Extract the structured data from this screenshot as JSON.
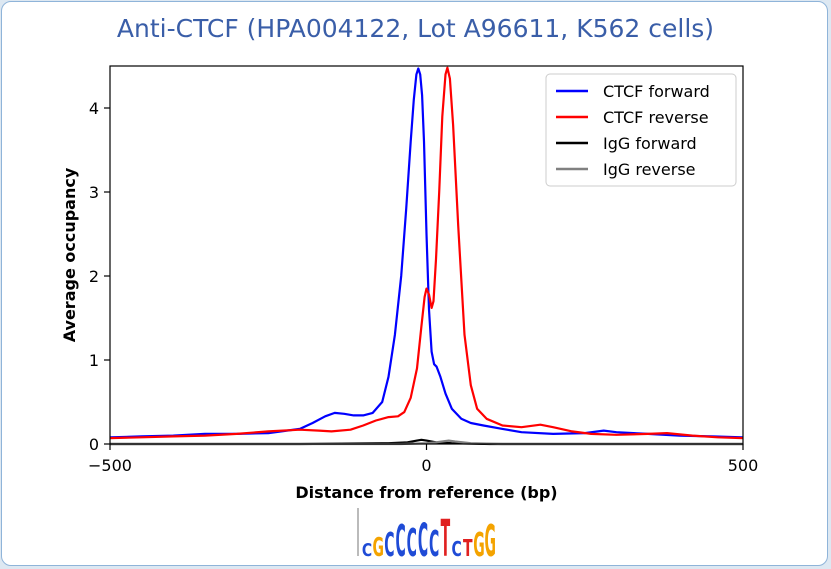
{
  "chart_data": {
    "type": "line",
    "title": "Anti-CTCF (HPA004122, Lot A96611, K562 cells)",
    "xlabel": "Distance from reference (bp)",
    "ylabel": "Average occupancy",
    "xlim": [
      -500,
      500
    ],
    "ylim": [
      0,
      4.5
    ],
    "xticks": [
      -500,
      0,
      500
    ],
    "xtick_labels": [
      "−500",
      "0",
      "500"
    ],
    "yticks": [
      0,
      1,
      2,
      3,
      4
    ],
    "ytick_labels": [
      "0",
      "1",
      "2",
      "3",
      "4"
    ],
    "grid": false,
    "legend_placement": "top-right",
    "series": [
      {
        "name": "CTCF forward",
        "color": "#0000ff",
        "points": [
          [
            -500,
            0.08
          ],
          [
            -450,
            0.09
          ],
          [
            -400,
            0.1
          ],
          [
            -350,
            0.12
          ],
          [
            -300,
            0.12
          ],
          [
            -250,
            0.13
          ],
          [
            -200,
            0.18
          ],
          [
            -180,
            0.25
          ],
          [
            -160,
            0.33
          ],
          [
            -145,
            0.37
          ],
          [
            -130,
            0.36
          ],
          [
            -115,
            0.34
          ],
          [
            -100,
            0.34
          ],
          [
            -85,
            0.37
          ],
          [
            -70,
            0.5
          ],
          [
            -60,
            0.8
          ],
          [
            -50,
            1.3
          ],
          [
            -40,
            2.0
          ],
          [
            -32,
            2.8
          ],
          [
            -25,
            3.6
          ],
          [
            -20,
            4.1
          ],
          [
            -16,
            4.4
          ],
          [
            -13,
            4.47
          ],
          [
            -10,
            4.4
          ],
          [
            -7,
            4.15
          ],
          [
            -4,
            3.6
          ],
          [
            0,
            2.5
          ],
          [
            4,
            1.6
          ],
          [
            8,
            1.1
          ],
          [
            12,
            0.95
          ],
          [
            16,
            0.92
          ],
          [
            22,
            0.8
          ],
          [
            30,
            0.6
          ],
          [
            40,
            0.42
          ],
          [
            55,
            0.3
          ],
          [
            70,
            0.25
          ],
          [
            90,
            0.22
          ],
          [
            120,
            0.18
          ],
          [
            150,
            0.14
          ],
          [
            200,
            0.12
          ],
          [
            250,
            0.13
          ],
          [
            280,
            0.16
          ],
          [
            300,
            0.14
          ],
          [
            350,
            0.12
          ],
          [
            400,
            0.1
          ],
          [
            450,
            0.09
          ],
          [
            500,
            0.08
          ]
        ]
      },
      {
        "name": "CTCF reverse",
        "color": "#ff0000",
        "points": [
          [
            -500,
            0.07
          ],
          [
            -450,
            0.08
          ],
          [
            -400,
            0.09
          ],
          [
            -350,
            0.1
          ],
          [
            -300,
            0.12
          ],
          [
            -250,
            0.15
          ],
          [
            -200,
            0.17
          ],
          [
            -170,
            0.16
          ],
          [
            -150,
            0.15
          ],
          [
            -120,
            0.17
          ],
          [
            -100,
            0.22
          ],
          [
            -80,
            0.28
          ],
          [
            -60,
            0.32
          ],
          [
            -45,
            0.33
          ],
          [
            -35,
            0.38
          ],
          [
            -25,
            0.55
          ],
          [
            -15,
            0.9
          ],
          [
            -8,
            1.4
          ],
          [
            -3,
            1.75
          ],
          [
            0,
            1.85
          ],
          [
            4,
            1.78
          ],
          [
            8,
            1.62
          ],
          [
            11,
            1.7
          ],
          [
            15,
            2.2
          ],
          [
            20,
            3.0
          ],
          [
            25,
            3.9
          ],
          [
            30,
            4.4
          ],
          [
            33,
            4.48
          ],
          [
            37,
            4.35
          ],
          [
            42,
            3.8
          ],
          [
            50,
            2.6
          ],
          [
            60,
            1.3
          ],
          [
            70,
            0.7
          ],
          [
            80,
            0.42
          ],
          [
            95,
            0.3
          ],
          [
            120,
            0.22
          ],
          [
            150,
            0.2
          ],
          [
            180,
            0.23
          ],
          [
            200,
            0.2
          ],
          [
            230,
            0.15
          ],
          [
            260,
            0.12
          ],
          [
            300,
            0.11
          ],
          [
            350,
            0.12
          ],
          [
            380,
            0.13
          ],
          [
            420,
            0.1
          ],
          [
            460,
            0.08
          ],
          [
            500,
            0.07
          ]
        ]
      },
      {
        "name": "IgG forward",
        "color": "#000000",
        "points": [
          [
            -500,
            0.0
          ],
          [
            -200,
            0.0
          ],
          [
            -60,
            0.01
          ],
          [
            -30,
            0.02
          ],
          [
            -15,
            0.04
          ],
          [
            -8,
            0.05
          ],
          [
            0,
            0.04
          ],
          [
            15,
            0.02
          ],
          [
            40,
            0.01
          ],
          [
            100,
            0.0
          ],
          [
            500,
            0.0
          ]
        ]
      },
      {
        "name": "IgG reverse",
        "color": "#808080",
        "points": [
          [
            -500,
            0.0
          ],
          [
            -200,
            0.0
          ],
          [
            -40,
            0.0
          ],
          [
            0,
            0.01
          ],
          [
            15,
            0.02
          ],
          [
            25,
            0.03
          ],
          [
            35,
            0.04
          ],
          [
            45,
            0.03
          ],
          [
            70,
            0.01
          ],
          [
            120,
            0.0
          ],
          [
            500,
            0.0
          ]
        ]
      }
    ],
    "motif_logo_letters": "CGCCCCCTCTGG"
  }
}
